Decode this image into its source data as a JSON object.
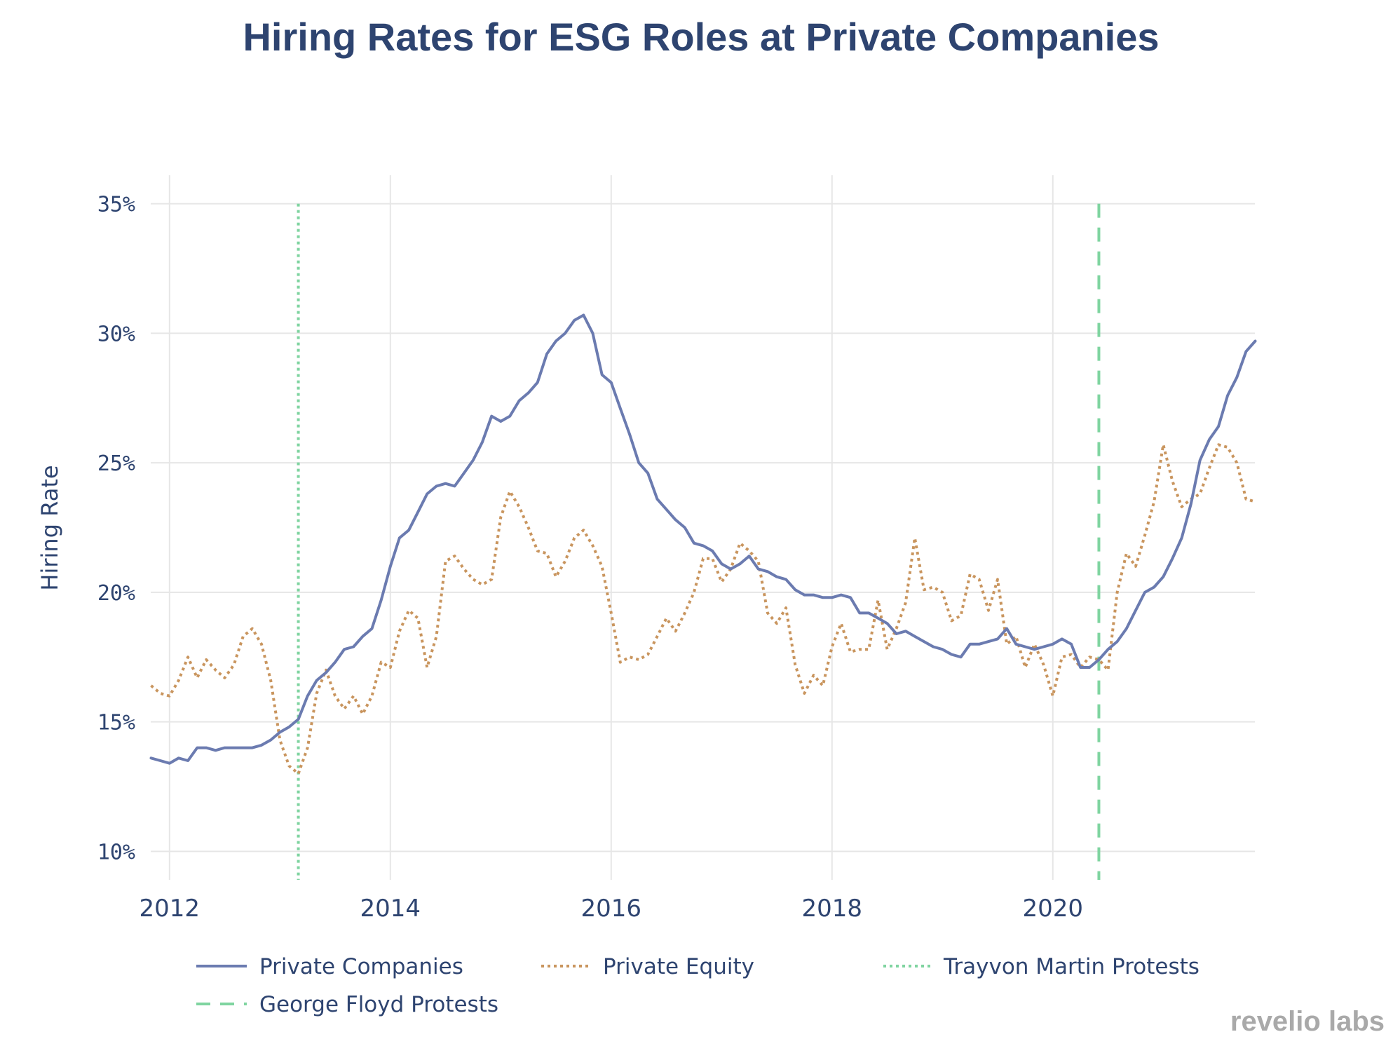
{
  "chart_data": {
    "type": "line",
    "title": "Hiring Rates for ESG Roles at Private Companies",
    "xlabel": "",
    "ylabel": "Hiring Rate",
    "xlim": [
      2011.83,
      2021.83
    ],
    "ylim": [
      0.089,
      0.361
    ],
    "x_ticks": [
      2012,
      2014,
      2016,
      2018,
      2020
    ],
    "x_tick_labels": [
      "2012",
      "2014",
      "2016",
      "2018",
      "2020"
    ],
    "y_ticks": [
      0.1,
      0.15,
      0.2,
      0.25,
      0.3,
      0.35
    ],
    "y_tick_labels": [
      "10%",
      "15%",
      "20%",
      "25%",
      "30%",
      "35%"
    ],
    "grid": true,
    "legend_position": "bottom",
    "series": [
      {
        "name": "Private Companies",
        "style": "solid",
        "color": "#6b7bb0",
        "x": [
          2011.833,
          2011.917,
          2012.0,
          2012.083,
          2012.167,
          2012.25,
          2012.333,
          2012.417,
          2012.5,
          2012.583,
          2012.667,
          2012.75,
          2012.833,
          2012.917,
          2013.0,
          2013.083,
          2013.167,
          2013.25,
          2013.333,
          2013.417,
          2013.5,
          2013.583,
          2013.667,
          2013.75,
          2013.833,
          2013.917,
          2014.0,
          2014.083,
          2014.167,
          2014.25,
          2014.333,
          2014.417,
          2014.5,
          2014.583,
          2014.667,
          2014.75,
          2014.833,
          2014.917,
          2015.0,
          2015.083,
          2015.167,
          2015.25,
          2015.333,
          2015.417,
          2015.5,
          2015.583,
          2015.667,
          2015.75,
          2015.833,
          2015.917,
          2016.0,
          2016.083,
          2016.167,
          2016.25,
          2016.333,
          2016.417,
          2016.5,
          2016.583,
          2016.667,
          2016.75,
          2016.833,
          2016.917,
          2017.0,
          2017.083,
          2017.167,
          2017.25,
          2017.333,
          2017.417,
          2017.5,
          2017.583,
          2017.667,
          2017.75,
          2017.833,
          2017.917,
          2018.0,
          2018.083,
          2018.167,
          2018.25,
          2018.333,
          2018.417,
          2018.5,
          2018.583,
          2018.667,
          2018.75,
          2018.833,
          2018.917,
          2019.0,
          2019.083,
          2019.167,
          2019.25,
          2019.333,
          2019.417,
          2019.5,
          2019.583,
          2019.667,
          2019.75,
          2019.833,
          2019.917,
          2020.0,
          2020.083,
          2020.167,
          2020.25,
          2020.333,
          2020.417,
          2020.5,
          2020.583,
          2020.667,
          2020.75,
          2020.833,
          2020.917,
          2021.0,
          2021.083,
          2021.167,
          2021.25,
          2021.333,
          2021.417,
          2021.5,
          2021.583,
          2021.667,
          2021.75,
          2021.833
        ],
        "values": [
          0.136,
          0.135,
          0.134,
          0.136,
          0.135,
          0.14,
          0.14,
          0.139,
          0.14,
          0.14,
          0.14,
          0.14,
          0.141,
          0.143,
          0.146,
          0.148,
          0.151,
          0.16,
          0.166,
          0.169,
          0.173,
          0.178,
          0.179,
          0.183,
          0.186,
          0.197,
          0.21,
          0.221,
          0.224,
          0.231,
          0.238,
          0.241,
          0.242,
          0.241,
          0.246,
          0.251,
          0.258,
          0.268,
          0.266,
          0.268,
          0.274,
          0.277,
          0.281,
          0.292,
          0.297,
          0.3,
          0.305,
          0.307,
          0.3,
          0.284,
          0.281,
          0.271,
          0.261,
          0.25,
          0.246,
          0.236,
          0.232,
          0.228,
          0.225,
          0.219,
          0.218,
          0.216,
          0.211,
          0.209,
          0.211,
          0.214,
          0.209,
          0.208,
          0.206,
          0.205,
          0.201,
          0.199,
          0.199,
          0.198,
          0.198,
          0.199,
          0.198,
          0.192,
          0.192,
          0.19,
          0.188,
          0.184,
          0.185,
          0.183,
          0.181,
          0.179,
          0.178,
          0.176,
          0.175,
          0.18,
          0.18,
          0.181,
          0.182,
          0.186,
          0.18,
          0.179,
          0.178,
          0.179,
          0.18,
          0.182,
          0.18,
          0.171,
          0.171,
          0.174,
          0.178,
          0.181,
          0.186,
          0.193,
          0.2,
          0.202,
          0.206,
          0.213,
          0.221,
          0.234,
          0.251,
          0.259,
          0.264,
          0.276,
          0.283,
          0.293,
          0.297
        ]
      },
      {
        "name": "Private Equity",
        "style": "dotted",
        "color": "#c9955e",
        "x": [
          2011.833,
          2011.917,
          2012.0,
          2012.083,
          2012.167,
          2012.25,
          2012.333,
          2012.417,
          2012.5,
          2012.583,
          2012.667,
          2012.75,
          2012.833,
          2012.917,
          2013.0,
          2013.083,
          2013.167,
          2013.25,
          2013.333,
          2013.417,
          2013.5,
          2013.583,
          2013.667,
          2013.75,
          2013.833,
          2013.917,
          2014.0,
          2014.083,
          2014.167,
          2014.25,
          2014.333,
          2014.417,
          2014.5,
          2014.583,
          2014.667,
          2014.75,
          2014.833,
          2014.917,
          2015.0,
          2015.083,
          2015.167,
          2015.25,
          2015.333,
          2015.417,
          2015.5,
          2015.583,
          2015.667,
          2015.75,
          2015.833,
          2015.917,
          2016.0,
          2016.083,
          2016.167,
          2016.25,
          2016.333,
          2016.417,
          2016.5,
          2016.583,
          2016.667,
          2016.75,
          2016.833,
          2016.917,
          2017.0,
          2017.083,
          2017.167,
          2017.25,
          2017.333,
          2017.417,
          2017.5,
          2017.583,
          2017.667,
          2017.75,
          2017.833,
          2017.917,
          2018.0,
          2018.083,
          2018.167,
          2018.25,
          2018.333,
          2018.417,
          2018.5,
          2018.583,
          2018.667,
          2018.75,
          2018.833,
          2018.917,
          2019.0,
          2019.083,
          2019.167,
          2019.25,
          2019.333,
          2019.417,
          2019.5,
          2019.583,
          2019.667,
          2019.75,
          2019.833,
          2019.917,
          2020.0,
          2020.083,
          2020.167,
          2020.25,
          2020.333,
          2020.417,
          2020.5,
          2020.583,
          2020.667,
          2020.75,
          2020.833,
          2020.917,
          2021.0,
          2021.083,
          2021.167,
          2021.25,
          2021.333,
          2021.417,
          2021.5,
          2021.583,
          2021.667,
          2021.75,
          2021.833
        ],
        "values": [
          0.164,
          0.161,
          0.16,
          0.166,
          0.175,
          0.167,
          0.174,
          0.17,
          0.167,
          0.172,
          0.183,
          0.186,
          0.18,
          0.166,
          0.143,
          0.133,
          0.13,
          0.14,
          0.161,
          0.17,
          0.16,
          0.155,
          0.16,
          0.153,
          0.16,
          0.173,
          0.171,
          0.185,
          0.193,
          0.19,
          0.171,
          0.183,
          0.212,
          0.214,
          0.209,
          0.205,
          0.203,
          0.205,
          0.229,
          0.239,
          0.233,
          0.225,
          0.216,
          0.215,
          0.206,
          0.212,
          0.221,
          0.224,
          0.218,
          0.21,
          0.192,
          0.173,
          0.175,
          0.174,
          0.176,
          0.183,
          0.19,
          0.185,
          0.192,
          0.2,
          0.213,
          0.213,
          0.204,
          0.209,
          0.219,
          0.216,
          0.212,
          0.192,
          0.188,
          0.194,
          0.172,
          0.161,
          0.168,
          0.164,
          0.179,
          0.188,
          0.177,
          0.178,
          0.178,
          0.197,
          0.178,
          0.186,
          0.196,
          0.221,
          0.201,
          0.202,
          0.2,
          0.189,
          0.191,
          0.207,
          0.205,
          0.193,
          0.205,
          0.18,
          0.183,
          0.171,
          0.18,
          0.172,
          0.16,
          0.175,
          0.176,
          0.171,
          0.175,
          0.174,
          0.17,
          0.2,
          0.215,
          0.21,
          0.222,
          0.235,
          0.257,
          0.243,
          0.233,
          0.236,
          0.238,
          0.248,
          0.257,
          0.256,
          0.25,
          0.236,
          0.235
        ]
      }
    ],
    "vlines": [
      {
        "name": "Trayvon Martin Protests",
        "x": 2013.167,
        "style": "dotted",
        "color": "#7fd4a0"
      },
      {
        "name": "George Floyd Protests",
        "x": 2020.417,
        "style": "dashed",
        "color": "#7fd4a0"
      }
    ]
  },
  "legend": {
    "items": [
      "Private Companies",
      "Private Equity",
      "Trayvon Martin Protests",
      "George Floyd Protests"
    ]
  },
  "brand": "revelio labs"
}
